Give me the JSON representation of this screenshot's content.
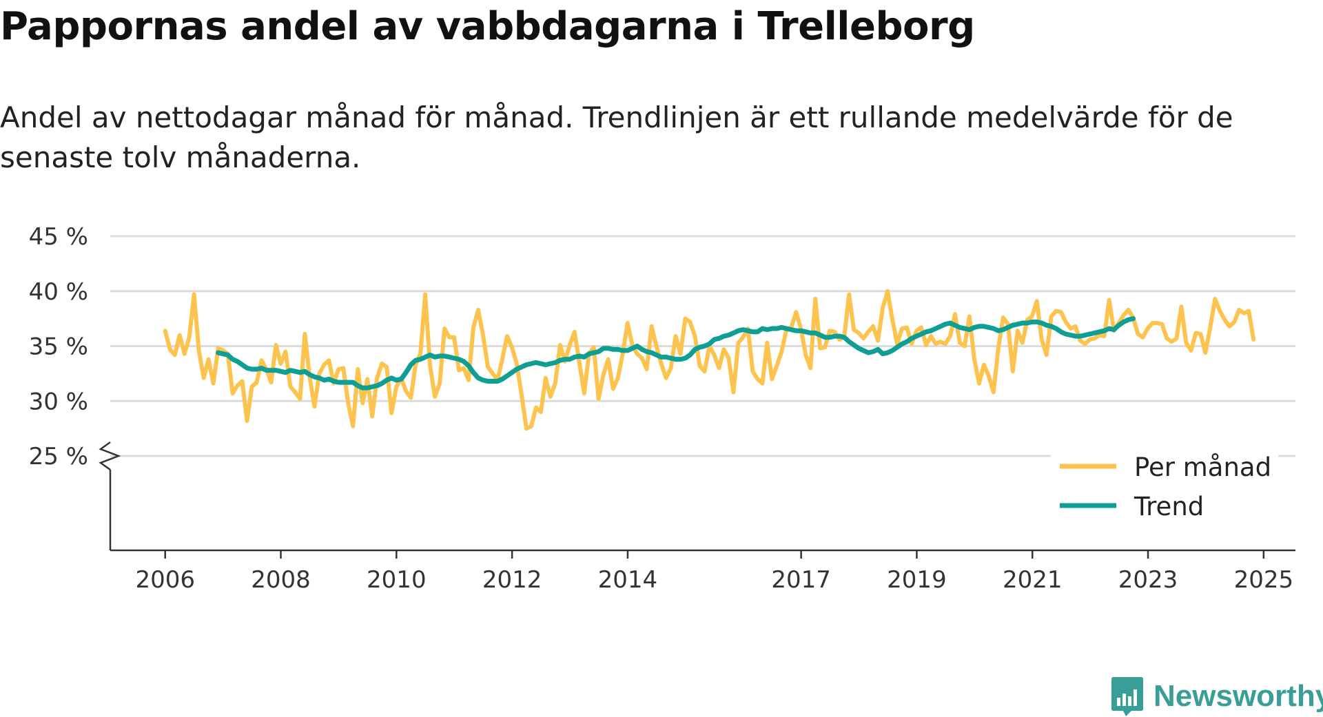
{
  "title": "Pappornas andel av vabbdagarna i Trelleborg",
  "subtitle": "Andel av nettodagar månad för månad. Trendlinjen är ett rullande medelvärde för de senaste tolv månaderna.",
  "brand": "Newsworthy",
  "colors": {
    "monthly": "#fcc44f",
    "trend": "#0f9e94",
    "grid": "#dcdcdc",
    "axis": "#333333",
    "brand": "#3a9e98"
  },
  "chart_data": {
    "type": "line",
    "title": "Pappornas andel av vabbdagarna i Trelleborg",
    "xlabel": "",
    "ylabel": "",
    "ylim": [
      25,
      45
    ],
    "y_axis_broken": true,
    "y_ticks": [
      25,
      30,
      35,
      40,
      45
    ],
    "y_tick_labels": [
      "25 %",
      "30 %",
      "35 %",
      "40 %",
      "45 %"
    ],
    "x_ticks": [
      2006,
      2008,
      2010,
      2012,
      2014,
      2017,
      2019,
      2021,
      2023,
      2025
    ],
    "x_tick_labels": [
      "2006",
      "2008",
      "2010",
      "2012",
      "2014",
      "2017",
      "2019",
      "2021",
      "2023",
      "2025"
    ],
    "x_tick_positions": [
      2006.0,
      2008.0,
      2010.0,
      2012.0,
      2014.0,
      2017.0,
      2019.0,
      2021.0,
      2023.0,
      2025.0
    ],
    "x_range": [
      2005.05,
      2025.55
    ],
    "legend_position": "bottom-right",
    "series": [
      {
        "name": "Per månad",
        "start": 2006.0,
        "step": 0.0833,
        "values": [
          36.4,
          34.7,
          34.2,
          36.0,
          34.3,
          35.8,
          39.7,
          34.6,
          32.1,
          33.8,
          31.6,
          34.8,
          34.6,
          34.3,
          30.7,
          31.4,
          31.8,
          28.2,
          31.3,
          31.7,
          33.7,
          32.9,
          31.7,
          35.1,
          33.4,
          34.5,
          31.3,
          30.8,
          30.2,
          36.1,
          32.2,
          29.5,
          32.5,
          33.3,
          33.7,
          31.6,
          32.9,
          33.0,
          29.8,
          27.7,
          32.9,
          29.8,
          32.0,
          28.6,
          32.1,
          33.4,
          33.1,
          28.9,
          31.3,
          32.1,
          30.9,
          30.3,
          33.3,
          34.3,
          39.7,
          33.2,
          30.4,
          31.6,
          36.6,
          35.8,
          35.8,
          32.8,
          33.0,
          31.9,
          36.7,
          38.3,
          36.0,
          33.1,
          32.5,
          31.9,
          33.8,
          35.9,
          34.9,
          33.4,
          30.6,
          27.5,
          27.7,
          29.4,
          29.0,
          32.1,
          30.4,
          31.6,
          35.1,
          33.6,
          35.1,
          36.3,
          33.5,
          30.7,
          34.3,
          34.9,
          30.2,
          32.4,
          33.8,
          31.1,
          32.1,
          34.3,
          37.1,
          35.1,
          34.3,
          33.9,
          32.9,
          36.8,
          35.0,
          33.4,
          32.1,
          33.0,
          35.9,
          34.3,
          37.5,
          37.2,
          35.9,
          33.2,
          32.7,
          35.0,
          34.2,
          33.0,
          34.7,
          33.9,
          30.8,
          35.3,
          35.8,
          36.6,
          32.7,
          32.0,
          31.6,
          35.3,
          32.0,
          33.2,
          34.5,
          36.5,
          36.7,
          38.1,
          36.6,
          34.2,
          33.0,
          39.3,
          34.8,
          34.9,
          36.4,
          36.3,
          35.6,
          35.8,
          39.7,
          36.5,
          36.2,
          35.7,
          36.3,
          36.8,
          35.5,
          38.5,
          40.0,
          37.4,
          35.2,
          36.6,
          36.7,
          35.2,
          36.4,
          36.7,
          35.1,
          35.9,
          35.2,
          35.4,
          35.2,
          35.9,
          37.9,
          35.3,
          35.0,
          37.7,
          33.8,
          31.6,
          33.3,
          32.3,
          30.8,
          34.8,
          37.6,
          37.0,
          32.7,
          36.4,
          35.3,
          37.4,
          37.7,
          39.1,
          35.6,
          34.2,
          37.7,
          38.2,
          38.1,
          37.2,
          36.6,
          36.8,
          35.5,
          35.2,
          35.6,
          35.7,
          36.0,
          35.9,
          39.2,
          36.4,
          37.1,
          37.8,
          38.3,
          37.6,
          36.1,
          35.8,
          36.6,
          37.1,
          37.1,
          37.0,
          35.7,
          35.4,
          35.7,
          38.6,
          35.3,
          34.6,
          36.2,
          36.1,
          34.4,
          36.7,
          39.3,
          38.2,
          37.4,
          36.8,
          37.2,
          38.3,
          38.0,
          38.2,
          35.6
        ]
      },
      {
        "name": "Trend",
        "start": 2006.9167,
        "step": 0.0833,
        "values": [
          34.4,
          34.3,
          34.2,
          33.8,
          33.6,
          33.3,
          33.0,
          32.9,
          32.9,
          33.0,
          32.8,
          32.8,
          32.8,
          32.7,
          32.6,
          32.8,
          32.7,
          32.6,
          32.7,
          32.4,
          32.2,
          32.1,
          31.9,
          32.0,
          31.8,
          31.7,
          31.7,
          31.7,
          31.7,
          31.4,
          31.2,
          31.2,
          31.3,
          31.4,
          31.6,
          31.9,
          32.1,
          31.9,
          32.0,
          32.6,
          33.3,
          33.7,
          33.8,
          34.0,
          34.2,
          34.0,
          34.1,
          34.1,
          34.0,
          33.9,
          33.8,
          33.6,
          33.2,
          32.6,
          32.1,
          31.9,
          31.8,
          31.8,
          31.8,
          32.0,
          32.3,
          32.6,
          32.9,
          33.1,
          33.3,
          33.4,
          33.5,
          33.4,
          33.3,
          33.4,
          33.5,
          33.7,
          33.8,
          33.8,
          34.0,
          34.1,
          34.0,
          34.3,
          34.4,
          34.5,
          34.8,
          34.8,
          34.7,
          34.7,
          34.6,
          34.6,
          34.8,
          35.0,
          34.7,
          34.5,
          34.4,
          34.2,
          34.0,
          34.0,
          33.9,
          33.8,
          33.8,
          33.9,
          34.2,
          34.7,
          34.9,
          35.0,
          35.2,
          35.6,
          35.7,
          35.9,
          36.0,
          36.2,
          36.4,
          36.5,
          36.4,
          36.3,
          36.3,
          36.6,
          36.5,
          36.6,
          36.6,
          36.7,
          36.6,
          36.5,
          36.4,
          36.4,
          36.3,
          36.2,
          36.2,
          36.0,
          35.8,
          35.8,
          35.9,
          35.9,
          35.8,
          35.4,
          35.1,
          34.8,
          34.6,
          34.4,
          34.5,
          34.7,
          34.3,
          34.4,
          34.6,
          34.9,
          35.2,
          35.4,
          35.7,
          35.9,
          36.1,
          36.3,
          36.4,
          36.6,
          36.8,
          37.0,
          37.1,
          36.9,
          36.7,
          36.6,
          36.5,
          36.7,
          36.8,
          36.8,
          36.7,
          36.6,
          36.4,
          36.5,
          36.7,
          36.9,
          37.0,
          37.1,
          37.1,
          37.2,
          37.2,
          37.1,
          36.9,
          36.8,
          36.6,
          36.3,
          36.1,
          36.0,
          35.9,
          35.9,
          36.0,
          36.1,
          36.2,
          36.3,
          36.4,
          36.6,
          36.5,
          36.9,
          37.2,
          37.4,
          37.5
        ]
      }
    ]
  }
}
